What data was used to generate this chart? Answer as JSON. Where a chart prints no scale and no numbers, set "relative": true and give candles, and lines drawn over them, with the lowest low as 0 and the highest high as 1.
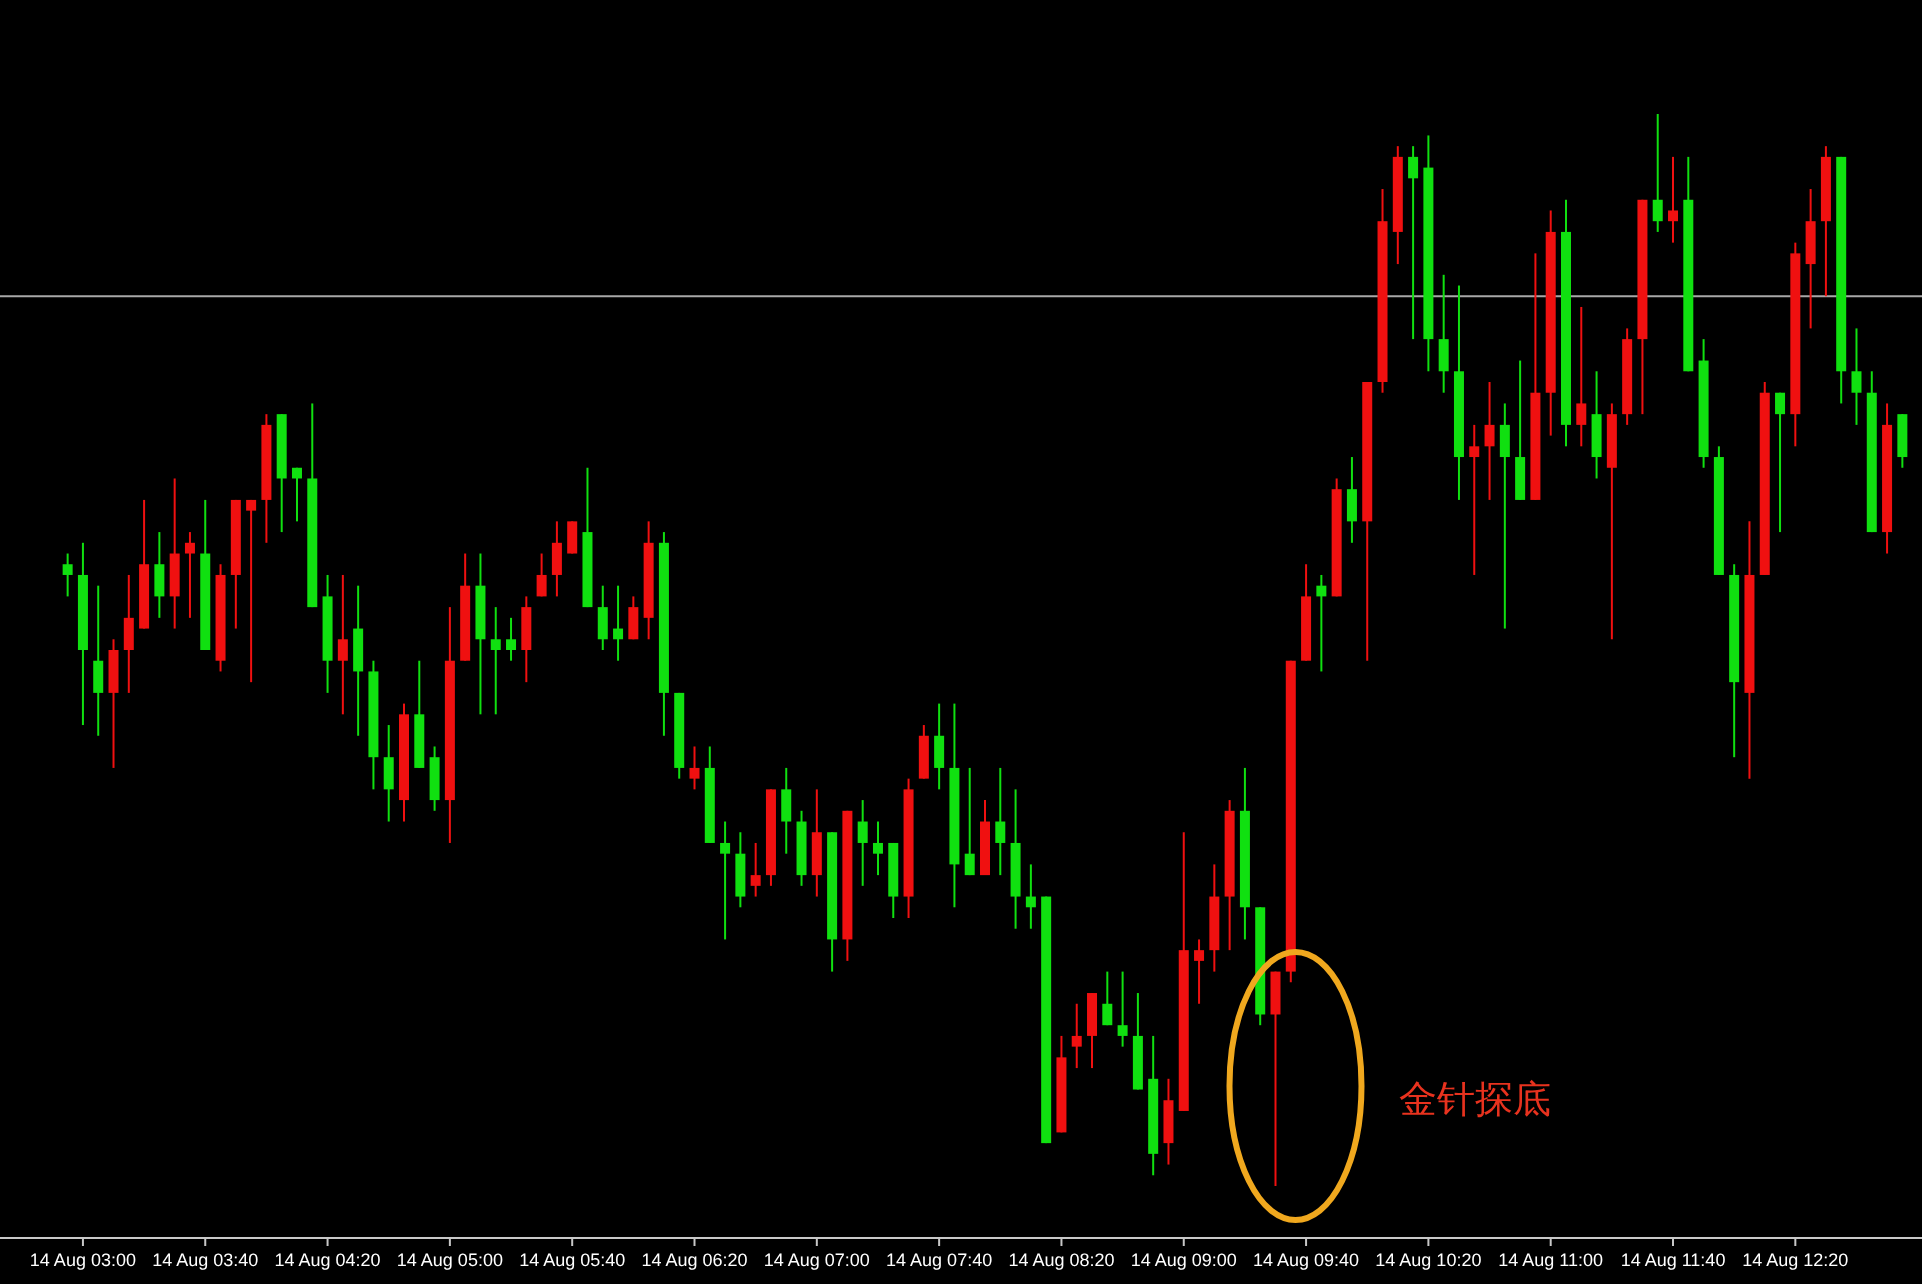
{
  "chart_data": {
    "type": "candlestick",
    "relative": true,
    "categories": [
      null,
      "14 Aug 03:00",
      null,
      null,
      null,
      null,
      null,
      null,
      null,
      "14 Aug 03:40",
      null,
      null,
      null,
      null,
      null,
      null,
      null,
      "14 Aug 04:20",
      null,
      null,
      null,
      null,
      null,
      null,
      null,
      "14 Aug 05:00",
      null,
      null,
      null,
      null,
      null,
      null,
      null,
      "14 Aug 05:40",
      null,
      null,
      null,
      null,
      null,
      null,
      null,
      "14 Aug 06:20",
      null,
      null,
      null,
      null,
      null,
      null,
      null,
      "14 Aug 07:00",
      null,
      null,
      null,
      null,
      null,
      null,
      null,
      "14 Aug 07:40",
      null,
      null,
      null,
      null,
      null,
      null,
      null,
      "14 Aug 08:20",
      null,
      null,
      null,
      null,
      null,
      null,
      null,
      "14 Aug 09:00",
      null,
      null,
      null,
      null,
      null,
      null,
      null,
      "14 Aug 09:40",
      null,
      null,
      null,
      null,
      null,
      null,
      null,
      "14 Aug 10:20",
      null,
      null,
      null,
      null,
      null,
      null,
      null,
      "14 Aug 11:00",
      null,
      null,
      null,
      null,
      null,
      null,
      null,
      "14 Aug 11:40",
      null,
      null,
      null,
      null,
      null,
      null,
      null,
      "14 Aug 12:20",
      null,
      null,
      null,
      null,
      null,
      null,
      null
    ],
    "ohlc": [
      [
        0.58,
        0.59,
        0.55,
        0.57
      ],
      [
        0.57,
        0.6,
        0.43,
        0.5
      ],
      [
        0.49,
        0.56,
        0.42,
        0.46
      ],
      [
        0.46,
        0.51,
        0.39,
        0.5
      ],
      [
        0.5,
        0.57,
        0.46,
        0.53
      ],
      [
        0.52,
        0.64,
        0.52,
        0.58
      ],
      [
        0.58,
        0.61,
        0.53,
        0.55
      ],
      [
        0.55,
        0.66,
        0.52,
        0.59
      ],
      [
        0.59,
        0.61,
        0.53,
        0.6
      ],
      [
        0.59,
        0.64,
        0.5,
        0.5
      ],
      [
        0.49,
        0.58,
        0.48,
        0.57
      ],
      [
        0.57,
        0.64,
        0.52,
        0.64
      ],
      [
        0.63,
        0.64,
        0.47,
        0.64
      ],
      [
        0.64,
        0.72,
        0.6,
        0.71
      ],
      [
        0.72,
        0.72,
        0.61,
        0.66
      ],
      [
        0.67,
        0.67,
        0.62,
        0.66
      ],
      [
        0.66,
        0.73,
        0.54,
        0.54
      ],
      [
        0.55,
        0.57,
        0.46,
        0.49
      ],
      [
        0.49,
        0.57,
        0.44,
        0.51
      ],
      [
        0.52,
        0.56,
        0.42,
        0.48
      ],
      [
        0.48,
        0.49,
        0.37,
        0.4
      ],
      [
        0.4,
        0.43,
        0.34,
        0.37
      ],
      [
        0.36,
        0.45,
        0.34,
        0.44
      ],
      [
        0.44,
        0.49,
        0.39,
        0.39
      ],
      [
        0.4,
        0.41,
        0.35,
        0.36
      ],
      [
        0.36,
        0.54,
        0.32,
        0.49
      ],
      [
        0.49,
        0.59,
        0.49,
        0.56
      ],
      [
        0.56,
        0.59,
        0.44,
        0.51
      ],
      [
        0.51,
        0.54,
        0.44,
        0.5
      ],
      [
        0.51,
        0.53,
        0.49,
        0.5
      ],
      [
        0.5,
        0.55,
        0.47,
        0.54
      ],
      [
        0.55,
        0.59,
        0.55,
        0.57
      ],
      [
        0.57,
        0.62,
        0.55,
        0.6
      ],
      [
        0.59,
        0.62,
        0.59,
        0.62
      ],
      [
        0.61,
        0.67,
        0.54,
        0.54
      ],
      [
        0.54,
        0.56,
        0.5,
        0.51
      ],
      [
        0.52,
        0.56,
        0.49,
        0.51
      ],
      [
        0.51,
        0.55,
        0.51,
        0.54
      ],
      [
        0.53,
        0.62,
        0.51,
        0.6
      ],
      [
        0.6,
        0.61,
        0.42,
        0.46
      ],
      [
        0.46,
        0.46,
        0.38,
        0.39
      ],
      [
        0.38,
        0.41,
        0.37,
        0.39
      ],
      [
        0.39,
        0.41,
        0.32,
        0.32
      ],
      [
        0.32,
        0.34,
        0.23,
        0.31
      ],
      [
        0.31,
        0.33,
        0.26,
        0.27
      ],
      [
        0.28,
        0.32,
        0.27,
        0.29
      ],
      [
        0.29,
        0.37,
        0.28,
        0.37
      ],
      [
        0.37,
        0.39,
        0.31,
        0.34
      ],
      [
        0.34,
        0.35,
        0.28,
        0.29
      ],
      [
        0.29,
        0.37,
        0.27,
        0.33
      ],
      [
        0.33,
        0.33,
        0.2,
        0.23
      ],
      [
        0.23,
        0.35,
        0.21,
        0.35
      ],
      [
        0.34,
        0.36,
        0.28,
        0.32
      ],
      [
        0.32,
        0.34,
        0.29,
        0.31
      ],
      [
        0.32,
        0.32,
        0.25,
        0.27
      ],
      [
        0.27,
        0.38,
        0.25,
        0.37
      ],
      [
        0.38,
        0.43,
        0.38,
        0.42
      ],
      [
        0.42,
        0.45,
        0.37,
        0.39
      ],
      [
        0.39,
        0.45,
        0.26,
        0.3
      ],
      [
        0.31,
        0.39,
        0.29,
        0.29
      ],
      [
        0.29,
        0.36,
        0.29,
        0.34
      ],
      [
        0.34,
        0.39,
        0.29,
        0.32
      ],
      [
        0.32,
        0.37,
        0.24,
        0.27
      ],
      [
        0.27,
        0.3,
        0.24,
        0.26
      ],
      [
        0.27,
        0.27,
        0.04,
        0.04
      ],
      [
        0.05,
        0.14,
        0.05,
        0.12
      ],
      [
        0.13,
        0.17,
        0.11,
        0.14
      ],
      [
        0.14,
        0.18,
        0.11,
        0.18
      ],
      [
        0.17,
        0.2,
        0.15,
        0.15
      ],
      [
        0.15,
        0.2,
        0.13,
        0.14
      ],
      [
        0.14,
        0.18,
        0.09,
        0.09
      ],
      [
        0.1,
        0.14,
        0.01,
        0.03
      ],
      [
        0.04,
        0.1,
        0.02,
        0.08
      ],
      [
        0.07,
        0.33,
        0.07,
        0.22
      ],
      [
        0.21,
        0.23,
        0.17,
        0.22
      ],
      [
        0.22,
        0.3,
        0.2,
        0.27
      ],
      [
        0.27,
        0.36,
        0.22,
        0.35
      ],
      [
        0.35,
        0.39,
        0.23,
        0.26
      ],
      [
        0.26,
        0.26,
        0.15,
        0.16
      ],
      [
        0.16,
        0.2,
        0,
        0.2
      ],
      [
        0.2,
        0.49,
        0.19,
        0.49
      ],
      [
        0.49,
        0.58,
        0.49,
        0.55
      ],
      [
        0.56,
        0.57,
        0.48,
        0.55
      ],
      [
        0.55,
        0.66,
        0.55,
        0.65
      ],
      [
        0.65,
        0.68,
        0.6,
        0.62
      ],
      [
        0.62,
        0.75,
        0.49,
        0.75
      ],
      [
        0.75,
        0.93,
        0.74,
        0.9
      ],
      [
        0.89,
        0.97,
        0.86,
        0.96
      ],
      [
        0.96,
        0.97,
        0.79,
        0.94
      ],
      [
        0.95,
        0.98,
        0.76,
        0.79
      ],
      [
        0.79,
        0.85,
        0.74,
        0.76
      ],
      [
        0.76,
        0.84,
        0.64,
        0.68
      ],
      [
        0.68,
        0.71,
        0.57,
        0.69
      ],
      [
        0.69,
        0.75,
        0.64,
        0.71
      ],
      [
        0.71,
        0.73,
        0.52,
        0.68
      ],
      [
        0.68,
        0.77,
        0.64,
        0.64
      ],
      [
        0.64,
        0.87,
        0.64,
        0.74
      ],
      [
        0.74,
        0.91,
        0.7,
        0.89
      ],
      [
        0.89,
        0.92,
        0.69,
        0.71
      ],
      [
        0.71,
        0.82,
        0.69,
        0.73
      ],
      [
        0.72,
        0.76,
        0.66,
        0.68
      ],
      [
        0.67,
        0.73,
        0.51,
        0.72
      ],
      [
        0.72,
        0.8,
        0.71,
        0.79
      ],
      [
        0.79,
        0.92,
        0.72,
        0.92
      ],
      [
        0.92,
        1.0,
        0.89,
        0.9
      ],
      [
        0.9,
        0.96,
        0.88,
        0.91
      ],
      [
        0.92,
        0.96,
        0.76,
        0.76
      ],
      [
        0.77,
        0.79,
        0.67,
        0.68
      ],
      [
        0.68,
        0.69,
        0.57,
        0.57
      ],
      [
        0.57,
        0.58,
        0.4,
        0.47
      ],
      [
        0.46,
        0.62,
        0.38,
        0.57
      ],
      [
        0.57,
        0.75,
        0.57,
        0.74
      ],
      [
        0.74,
        0.74,
        0.61,
        0.72
      ],
      [
        0.72,
        0.88,
        0.69,
        0.87
      ],
      [
        0.86,
        0.93,
        0.8,
        0.9
      ],
      [
        0.9,
        0.97,
        0.83,
        0.96
      ],
      [
        0.96,
        0.96,
        0.73,
        0.76
      ],
      [
        0.76,
        0.8,
        0.71,
        0.74
      ],
      [
        0.74,
        0.76,
        0.61,
        0.61
      ],
      [
        0.61,
        0.73,
        0.59,
        0.71
      ],
      [
        0.72,
        0.72,
        0.67,
        0.68
      ]
    ],
    "colors": [
      "#10e010",
      "#10e010",
      "#10e010",
      "#f01010",
      "#f01010",
      "#f01010",
      "#10e010",
      "#f01010",
      "#f01010",
      "#10e010",
      "#f01010",
      "#f01010",
      "#f01010",
      "#f01010",
      "#10e010",
      "#10e010",
      "#10e010",
      "#10e010",
      "#f01010",
      "#10e010",
      "#10e010",
      "#10e010",
      "#f01010",
      "#10e010",
      "#10e010",
      "#f01010",
      "#f01010",
      "#10e010",
      "#10e010",
      "#10e010",
      "#f01010",
      "#f01010",
      "#f01010",
      "#f01010",
      "#10e010",
      "#10e010",
      "#10e010",
      "#f01010",
      "#f01010",
      "#10e010",
      "#10e010",
      "#f01010",
      "#10e010",
      "#10e010",
      "#10e010",
      "#f01010",
      "#f01010",
      "#10e010",
      "#10e010",
      "#f01010",
      "#10e010",
      "#f01010",
      "#10e010",
      "#10e010",
      "#10e010",
      "#f01010",
      "#f01010",
      "#10e010",
      "#10e010",
      "#10e010",
      "#f01010",
      "#10e010",
      "#10e010",
      "#10e010",
      "#10e010",
      "#f01010",
      "#f01010",
      "#f01010",
      "#10e010",
      "#10e010",
      "#10e010",
      "#10e010",
      "#f01010",
      "#f01010",
      "#f01010",
      "#f01010",
      "#f01010",
      "#10e010",
      "#10e010",
      "#f01010",
      "#f01010",
      "#f01010",
      "#10e010",
      "#f01010",
      "#10e010",
      "#f01010",
      "#f01010",
      "#f01010",
      "#10e010",
      "#10e010",
      "#10e010",
      "#10e010",
      "#f01010",
      "#f01010",
      "#10e010",
      "#10e010",
      "#f01010",
      "#f01010",
      "#10e010",
      "#f01010",
      "#10e010",
      "#f01010",
      "#f01010",
      "#f01010",
      "#10e010",
      "#f01010",
      "#10e010",
      "#10e010",
      "#10e010",
      "#10e010",
      "#f01010",
      "#f01010",
      "#10e010",
      "#f01010",
      "#f01010",
      "#f01010",
      "#10e010",
      "#10e010",
      "#10e010",
      "#f01010",
      "#10e010"
    ],
    "ref_lines": [
      {
        "axis": "y",
        "value": 0.83,
        "color": "#a8a8a8"
      }
    ],
    "annotations": [
      "金针探底"
    ]
  }
}
